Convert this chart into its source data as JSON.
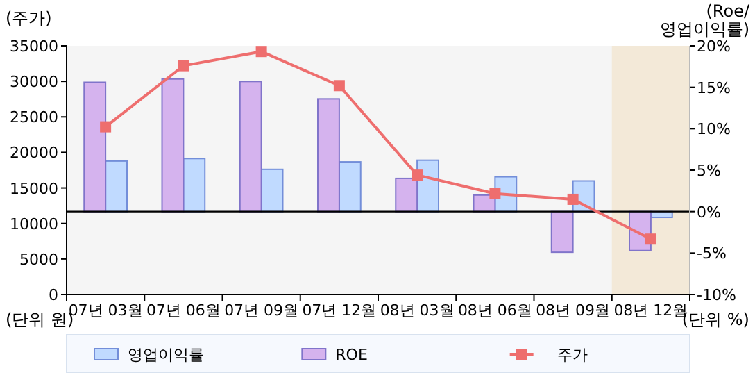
{
  "chart_data": {
    "type": "bar",
    "ylabel": "(주가)",
    "y2label": "(Roe/ 영업이익률)",
    "categories": [
      "07년 03월",
      "07년 06월",
      "07년 09월",
      "07년 12월",
      "08년 03월",
      "08년 06월",
      "08년 09월",
      "08년 12월"
    ],
    "series": [
      {
        "name": "영업이익률",
        "color": "#c0daff",
        "axis": "y2",
        "values": [
          6.1,
          6.4,
          5.1,
          6.0,
          6.2,
          4.2,
          3.7,
          -0.7
        ]
      },
      {
        "name": "ROE",
        "color": "#d5b3ee",
        "axis": "y2",
        "values": [
          15.6,
          16.0,
          15.7,
          13.6,
          4.0,
          2.0,
          -4.9,
          -4.7
        ]
      },
      {
        "name": "주가",
        "type": "line",
        "color": "#ee6e6e",
        "marker": "square",
        "values": [
          23600,
          32200,
          34200,
          29400,
          16800,
          14200,
          13400,
          7800
        ]
      }
    ],
    "ylim": [
      0,
      35000
    ],
    "yticks": [
      0,
      5000,
      10000,
      15000,
      20000,
      25000,
      30000,
      35000
    ],
    "y2lim": [
      -10,
      20
    ],
    "y2ticks": [
      {
        "value": -10,
        "label": "-10%"
      },
      {
        "value": -5,
        "label": "-5%"
      },
      {
        "value": 0,
        "label": "0%"
      },
      {
        "value": 5,
        "label": "5%"
      },
      {
        "value": 10,
        "label": "10%"
      },
      {
        "value": 15,
        "label": "15%"
      },
      {
        "value": 20,
        "label": "20%"
      }
    ],
    "ref_lines": [
      {
        "axis": "y2",
        "value": 0,
        "color": "#000000"
      }
    ],
    "bands": [
      {
        "axis": "x",
        "from": "08년 12월",
        "to": "08년 12월",
        "color": "#f3e9d8"
      }
    ],
    "annotations": [
      "(단위 원)",
      "(단위 %)"
    ],
    "grid": false,
    "legend": "bottom"
  }
}
